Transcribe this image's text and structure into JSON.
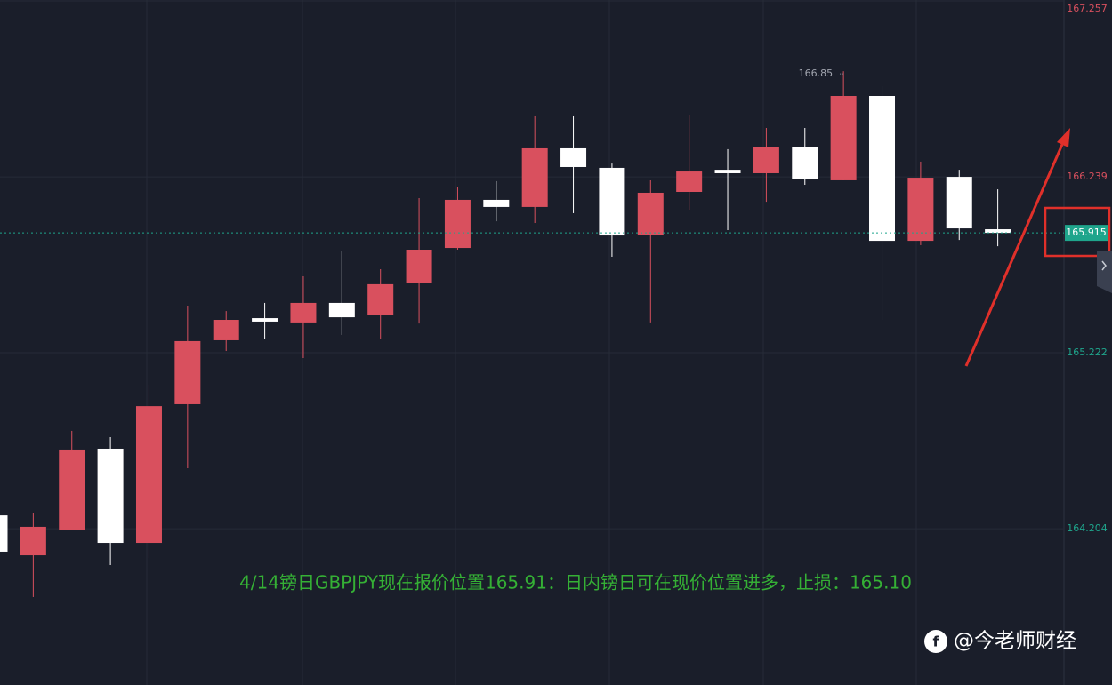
{
  "chart_data": {
    "type": "candlestick",
    "ylim": [
      163.3,
      167.262
    ],
    "yticks": [
      164.204,
      165.222,
      166.239,
      167.257
    ],
    "up_color": "#d9505e",
    "down_color": "#ffffff",
    "open": [
      164.281,
      164.05,
      164.199,
      164.667,
      164.122,
      164.924,
      165.294,
      165.422,
      165.397,
      165.51,
      165.438,
      165.623,
      165.828,
      166.106,
      166.065,
      166.404,
      166.291,
      165.905,
      166.152,
      166.28,
      166.26,
      166.409,
      166.219,
      166.707,
      165.869,
      166.239,
      165.936
    ],
    "high": [
      164.281,
      164.297,
      164.77,
      164.734,
      165.037,
      165.494,
      165.463,
      165.51,
      165.664,
      165.808,
      165.705,
      166.116,
      166.178,
      166.214,
      166.589,
      166.589,
      166.316,
      166.219,
      166.599,
      166.399,
      166.522,
      166.522,
      166.85,
      166.764,
      166.327,
      166.28,
      166.167
    ],
    "low": [
      164.071,
      163.809,
      164.199,
      163.994,
      164.035,
      164.554,
      165.232,
      165.304,
      165.191,
      165.325,
      165.304,
      165.391,
      165.818,
      165.982,
      165.972,
      166.029,
      165.777,
      165.397,
      166.049,
      165.931,
      166.095,
      166.193,
      166.219,
      165.412,
      165.844,
      165.874,
      165.838
    ],
    "close": [
      164.071,
      164.215,
      164.662,
      164.122,
      164.913,
      165.289,
      165.412,
      165.402,
      165.51,
      165.427,
      165.618,
      165.818,
      166.106,
      166.065,
      166.404,
      166.296,
      165.9,
      166.147,
      166.27,
      166.26,
      166.409,
      166.224,
      166.707,
      165.869,
      166.234,
      165.941,
      165.915
    ],
    "annotation": "4/14镑日GBPJPY现在报价位置165.91：日内镑日可在现价位置进多，止损：165.10",
    "watermark": "@今老师财经"
  }
}
